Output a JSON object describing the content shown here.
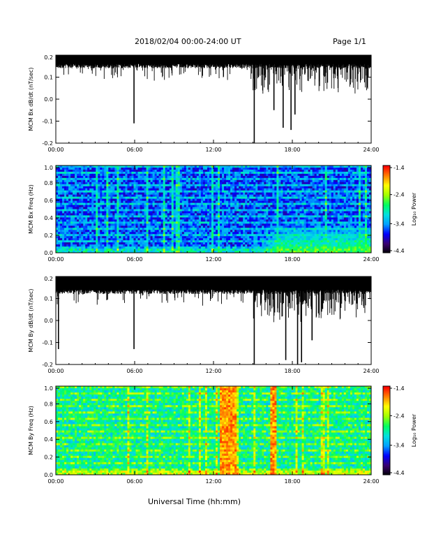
{
  "header": {
    "title": "2018/02/04   00:00-24:00 UT",
    "page": "Page 1/1"
  },
  "xlabel": "Universal Time (hh:mm)",
  "colorbar": {
    "label": "Log₁₀ Power",
    "ticks": [
      "-1.4",
      "-2.4",
      "-3.4",
      "-4.4"
    ],
    "colors": [
      "#000000",
      "#3a0070",
      "#0000ff",
      "#00a0ff",
      "#00e0e0",
      "#00ff60",
      "#a0ff00",
      "#ffff00",
      "#ff8000",
      "#ff0000"
    ]
  },
  "chart_data": [
    {
      "type": "line",
      "ylabel": "MCM Bx dB/dt (nT/sec)",
      "xticks": [
        "00:00",
        "06:00",
        "12:00",
        "18:00",
        "24:00"
      ],
      "yticks": [
        "0.2",
        "0.1",
        "0.0",
        "-0.1",
        "-0.2"
      ],
      "xlim": [
        0,
        24
      ],
      "ylim": [
        -0.2,
        0.2
      ],
      "series": [
        {
          "typical_upper": 0.2,
          "typical_lower": 0.16,
          "spikes": [
            {
              "x": 5.95,
              "y": -0.11
            },
            {
              "x": 15.1,
              "y": -0.2
            },
            {
              "x": 16.6,
              "y": -0.05
            },
            {
              "x": 17.3,
              "y": -0.13
            },
            {
              "x": 17.9,
              "y": -0.14
            },
            {
              "x": 18.2,
              "y": -0.07
            }
          ]
        }
      ]
    },
    {
      "type": "heatmap",
      "ylabel": "MCM Bx Freq (Hz)",
      "xticks": [
        "00:00",
        "06:00",
        "12:00",
        "18:00",
        "24:00"
      ],
      "yticks": [
        "1.0",
        "0.8",
        "0.6",
        "0.4",
        "0.2",
        "0.0"
      ],
      "xlim": [
        0,
        24
      ],
      "ylim": [
        0,
        1.0
      ],
      "zlim": [
        -4.4,
        -1.4
      ],
      "background_log_power": -3.6,
      "enhanced_region": {
        "t_start": 15,
        "t_end": 24,
        "f_max": 0.35,
        "log_power": -2.6
      }
    },
    {
      "type": "line",
      "ylabel": "MCM By dB/dt (nT/sec)",
      "xticks": [
        "00:00",
        "06:00",
        "12:00",
        "18:00",
        "24:00"
      ],
      "yticks": [
        "0.2",
        "0.1",
        "0.0",
        "-0.1",
        "-0.2"
      ],
      "xlim": [
        0,
        24
      ],
      "ylim": [
        -0.2,
        0.2
      ],
      "series": [
        {
          "typical_upper": 0.2,
          "typical_lower": 0.14,
          "spikes": [
            {
              "x": 0.2,
              "y": -0.13
            },
            {
              "x": 5.95,
              "y": -0.13
            },
            {
              "x": 15.1,
              "y": -0.2
            },
            {
              "x": 17.5,
              "y": -0.18
            },
            {
              "x": 18.4,
              "y": -0.2
            },
            {
              "x": 18.7,
              "y": -0.19
            },
            {
              "x": 19.5,
              "y": -0.09
            }
          ]
        }
      ]
    },
    {
      "type": "heatmap",
      "ylabel": "MCM By Freq (Hz)",
      "xticks": [
        "00:00",
        "06:00",
        "12:00",
        "18:00",
        "24:00"
      ],
      "yticks": [
        "1.0",
        "0.8",
        "0.6",
        "0.4",
        "0.2",
        "0.0"
      ],
      "xlim": [
        0,
        24
      ],
      "ylim": [
        0,
        1.0
      ],
      "zlim": [
        -4.4,
        -1.4
      ],
      "background_log_power": -2.9,
      "bursts_hours": [
        12.6,
        13.1,
        13.4,
        16.5
      ]
    }
  ]
}
